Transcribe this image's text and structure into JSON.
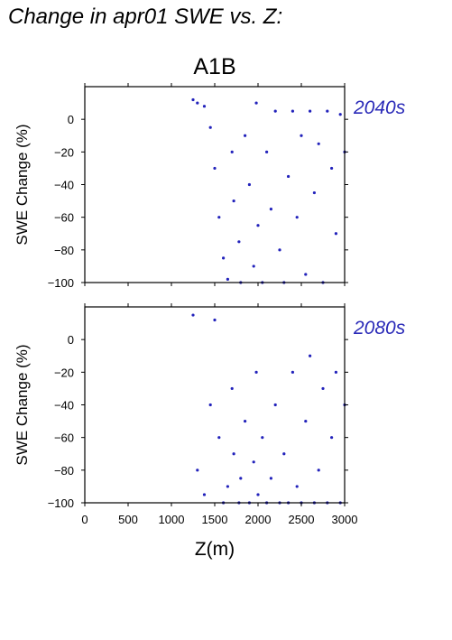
{
  "figure_title": "Change in apr01 SWE vs. Z:",
  "chart_data": [
    {
      "type": "scatter",
      "title": "A1B",
      "period_label": "2040s",
      "xlabel": "",
      "ylabel": "SWE Change (%)",
      "xlim": [
        0,
        3000
      ],
      "ylim": [
        -100,
        20
      ],
      "xticks": [
        0,
        500,
        1000,
        1500,
        2000,
        2500,
        3000
      ],
      "yticks": [
        0,
        -20,
        -40,
        -60,
        -80,
        -100
      ],
      "grid": false,
      "point_color": "#2222bb",
      "label_color": "#2a2ab8",
      "x": [
        1250,
        1300,
        1380,
        1450,
        1500,
        1550,
        1600,
        1650,
        1700,
        1720,
        1780,
        1800,
        1850,
        1900,
        1950,
        1980,
        2000,
        2050,
        2100,
        2150,
        2200,
        2250,
        2300,
        2350,
        2400,
        2450,
        2500,
        2550,
        2600,
        2650,
        2700,
        2750,
        2800,
        2850,
        2900,
        2950,
        3000
      ],
      "y": [
        12,
        10,
        8,
        -5,
        -30,
        -60,
        -85,
        -98,
        -20,
        -50,
        -75,
        -100,
        -10,
        -40,
        -90,
        10,
        -65,
        -100,
        -20,
        -55,
        5,
        -80,
        -100,
        -35,
        5,
        -60,
        -10,
        -95,
        5,
        -45,
        -15,
        -100,
        5,
        -30,
        -70,
        3,
        -20
      ]
    },
    {
      "type": "scatter",
      "title": "",
      "period_label": "2080s",
      "xlabel": "Z(m)",
      "ylabel": "SWE Change (%)",
      "xlim": [
        0,
        3000
      ],
      "ylim": [
        -100,
        20
      ],
      "xticks": [
        0,
        500,
        1000,
        1500,
        2000,
        2500,
        3000
      ],
      "xtick_labels": [
        "0",
        "500",
        "1000",
        "1500",
        "2000",
        "2500",
        "3000"
      ],
      "yticks": [
        0,
        -20,
        -40,
        -60,
        -80,
        -100
      ],
      "grid": false,
      "point_color": "#2222bb",
      "label_color": "#2a2ab8",
      "x": [
        1250,
        1300,
        1380,
        1450,
        1500,
        1550,
        1600,
        1650,
        1700,
        1720,
        1780,
        1800,
        1850,
        1900,
        1950,
        1980,
        2000,
        2050,
        2100,
        2150,
        2200,
        2250,
        2300,
        2350,
        2400,
        2450,
        2500,
        2550,
        2600,
        2650,
        2700,
        2750,
        2800,
        2850,
        2900,
        2950,
        3000
      ],
      "y": [
        15,
        -80,
        -95,
        -40,
        12,
        -60,
        -100,
        -90,
        -30,
        -70,
        -100,
        -85,
        -50,
        -100,
        -75,
        -20,
        -95,
        -60,
        -100,
        -85,
        -40,
        -100,
        -70,
        -100,
        -20,
        -90,
        -100,
        -50,
        -10,
        -100,
        -80,
        -30,
        -100,
        -60,
        -20,
        -100,
        -40
      ]
    }
  ]
}
